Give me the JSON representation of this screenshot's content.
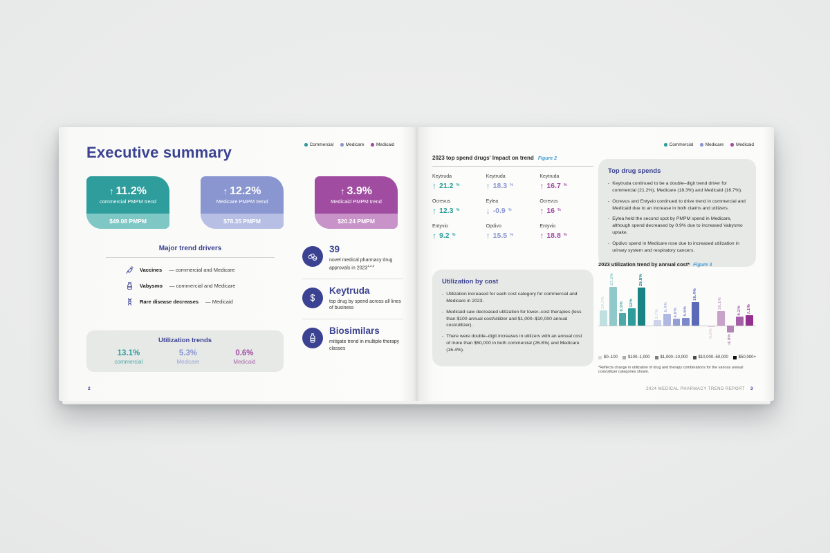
{
  "colors": {
    "commercial": "#2D9C9B",
    "medicare": "#8A96D0",
    "medicaid": "#A04DA1",
    "indigo": "#3B4291",
    "figure_link": "#3F9BD5",
    "box_bg": "#E7E9E7",
    "card_commercial": "#2E9D9C",
    "card_commercial_strip": "#7FC7C5",
    "card_medicare": "#8A96D0",
    "card_medicare_strip": "#B7BFE4",
    "card_medicaid": "#A04DA1",
    "card_medicaid_strip": "#C793C8",
    "bar_shades": {
      "Commercial": [
        "#C0DFDF",
        "#8FC9C9",
        "#4FA8A8",
        "#2D9C9B",
        "#1A8384"
      ],
      "Medicare": [
        "#CDD2ED",
        "#AFB8E2",
        "#939ED6",
        "#7B88CB",
        "#5A69B8"
      ],
      "Medicaid": [
        "#DFC9E0",
        "#C9A2CB",
        "#B384B5",
        "#A55FA7",
        "#93308F"
      ]
    },
    "cost_legend_shades": [
      "#D9D9D9",
      "#ACACAC",
      "#7C7C7C",
      "#4B4B4B",
      "#121212"
    ]
  },
  "lob_legend": [
    {
      "label": "Commercial",
      "color": "#2D9C9B"
    },
    {
      "label": "Medicare",
      "color": "#8A96D0"
    },
    {
      "label": "Medicaid",
      "color": "#A04DA1"
    }
  ],
  "left_page": {
    "title": "Executive summary",
    "stat_cards": [
      {
        "lob": "commercial",
        "arrow": "up",
        "value": "11.2%",
        "label": "commercial PMPM trend",
        "pmpm": "$49.08 PMPM"
      },
      {
        "lob": "medicare",
        "arrow": "up",
        "value": "12.2%",
        "label": "Medicare PMPM trend",
        "pmpm": "$78.35 PMPM"
      },
      {
        "lob": "medicaid",
        "arrow": "up",
        "value": "3.9%",
        "label": "Medicaid PMPM trend",
        "pmpm": "$20.24 PMPM"
      }
    ],
    "trend_drivers": {
      "title": "Major trend drivers",
      "items": [
        {
          "icon": "syringe-icon",
          "name": "Vaccines",
          "detail": "— commercial and Medicare"
        },
        {
          "icon": "vial-icon",
          "name": "Vabysmo",
          "detail": "— commercial and Medicare"
        },
        {
          "icon": "dna-icon",
          "name": "Rare disease decreases",
          "detail": "— Medicaid"
        }
      ]
    },
    "utilization_trends": {
      "title": "Utilization trends",
      "items": [
        {
          "lob": "commercial",
          "value": "13.1%",
          "label": "commercial"
        },
        {
          "lob": "medicare",
          "value": "5.3%",
          "label": "Medicare"
        },
        {
          "lob": "medicaid",
          "value": "0.6%",
          "label": "Medicaid"
        }
      ]
    },
    "highlights": [
      {
        "icon": "pills-icon",
        "title": "39",
        "desc": "novel medical pharmacy drug approvals in 2023",
        "sup": "1,2,3"
      },
      {
        "icon": "dollar-icon",
        "title": "Keytruda",
        "desc": "top drug by spend across all lines of business",
        "sup": ""
      },
      {
        "icon": "bottle-icon",
        "title": "Biosimilars",
        "desc": "mitigate trend in multiple therapy classes",
        "sup": ""
      }
    ],
    "page_number": "2"
  },
  "right_page": {
    "impact": {
      "title": "2023 top spend drugs' Impact on trend",
      "figure": "Figure 2",
      "columns": [
        {
          "lob": "commercial",
          "drugs": [
            {
              "name": "Keytruda",
              "direction": "up",
              "value": "21.2"
            },
            {
              "name": "Ocrevus",
              "direction": "up",
              "value": "12.3"
            },
            {
              "name": "Entyvio",
              "direction": "up",
              "value": "9.2"
            }
          ]
        },
        {
          "lob": "medicare",
          "drugs": [
            {
              "name": "Keytruda",
              "direction": "up",
              "value": "18.3"
            },
            {
              "name": "Eylea",
              "direction": "down",
              "value": "-0.9"
            },
            {
              "name": "Opdivo",
              "direction": "up",
              "value": "15.5"
            }
          ]
        },
        {
          "lob": "medicaid",
          "drugs": [
            {
              "name": "Keytruda",
              "direction": "up",
              "value": "16.7"
            },
            {
              "name": "Ocrevus",
              "direction": "up",
              "value": "16"
            },
            {
              "name": "Entyvio",
              "direction": "up",
              "value": "18.8"
            }
          ]
        }
      ]
    },
    "top_drug_spends": {
      "title": "Top drug spends",
      "bullets": [
        "Keytruda continued to be a double–digit trend driver for commercial (21.2%), Medicare (18.3%) and Medicaid (16.7%).",
        "Ocrevus and Entyvio continued to drive trend in commercial and Medicaid due to an increase in both claims and utilizers.",
        "Eylea held the second spot by PMPM spend in Medicare, although spend decreased by 0.9% due to increased Vabysmo uptake.",
        "Opdivo spend in Medicare rose due to increased utilization in urinary system and respiratory cancers."
      ]
    },
    "utilization_by_cost": {
      "title": "Utilization by cost",
      "bullets": [
        "Utilization increased for each cost category for commercial and Medicare in 2023.",
        "Medicaid saw decreased utilization for lower–cost therapies (less than $100 annual cost/utilizer and $1,000–$10,000 annual cost/utilizer).",
        "There were double–digit increases in utilizers with an annual cost of more than $50,000 in both commercial (26.8%) and Medicare (16.4%)."
      ]
    },
    "chart_heading": {
      "title": "2023 utilization trend by annual cost*",
      "figure": "Figure 3"
    },
    "footnote": "*Reflects change in utilization of drug and therapy combinations for the various annual cost/utilizer categories shown.",
    "footer_text": "2024 MEDICAL PHARMACY TREND REPORT",
    "page_number": "3"
  },
  "chart_data": {
    "type": "bar",
    "title": "2023 utilization trend by annual cost*",
    "figure": "Figure 3",
    "categories": [
      "$0–100",
      "$100–1,000",
      "$1,000–10,000",
      "$10,000–50,000",
      "$50,000+"
    ],
    "series": [
      {
        "name": "Commercial",
        "values": [
          10.7,
          27.2,
          8.9,
          12,
          26.8
        ]
      },
      {
        "name": "Medicare",
        "values": [
          3.7,
          8.4,
          4.8,
          5.6,
          16.4
        ]
      },
      {
        "name": "Medicaid",
        "values": [
          -0.8,
          10.1,
          -4.9,
          6.2,
          7.1
        ]
      }
    ],
    "value_labels": [
      [
        "10.7%",
        "27.2%",
        "8.9%",
        "12%",
        "26.8%"
      ],
      [
        "3.7%",
        "8.4%",
        "4.8%",
        "5.6%",
        "16.4%"
      ],
      [
        "-0.8%",
        "10.1%",
        "-4.9%",
        "6.2%",
        "7.1%"
      ]
    ],
    "ylabel": "",
    "xlabel": "",
    "ylim": [
      -10,
      30
    ],
    "grid": false,
    "legend_position": "bottom"
  }
}
